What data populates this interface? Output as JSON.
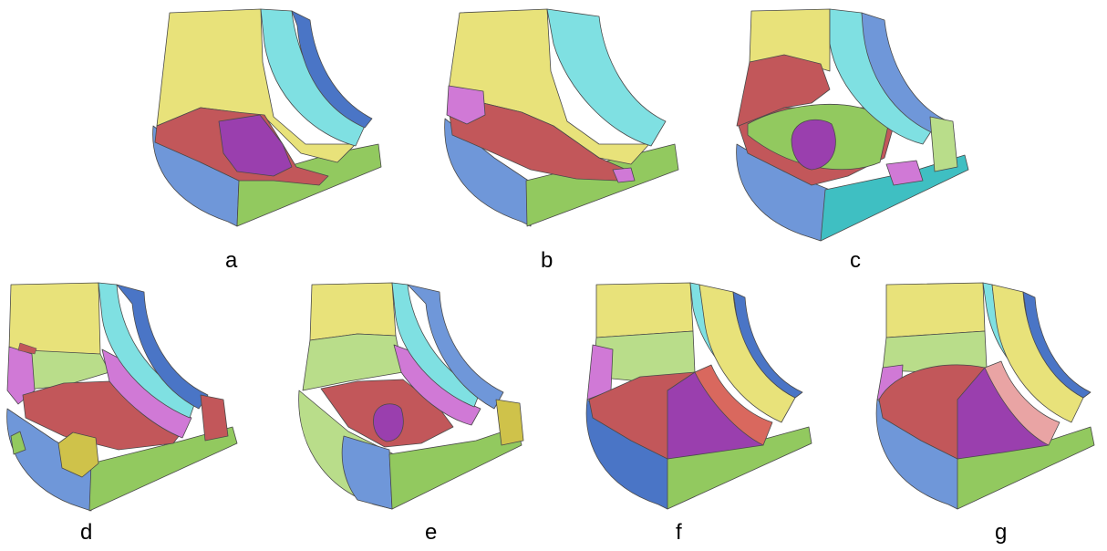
{
  "palette": {
    "yellow": "#e8e27a",
    "cyan": "#7fe0e2",
    "blue": "#6f97d9",
    "blue_dark": "#4a75c6",
    "red": "#c2575a",
    "purple": "#9a3fae",
    "magenta": "#d079d6",
    "green": "#92c95f",
    "green_light": "#b9dd8a",
    "teal": "#3fbfc2",
    "pink": "#e9a4a4",
    "salmon": "#d9685e",
    "olive": "#cfc24a"
  },
  "panels": [
    {
      "id": "a",
      "label": "a"
    },
    {
      "id": "b",
      "label": "b"
    },
    {
      "id": "c",
      "label": "c"
    },
    {
      "id": "d",
      "label": "d"
    },
    {
      "id": "e",
      "label": "e"
    },
    {
      "id": "f",
      "label": "f"
    },
    {
      "id": "g",
      "label": "g"
    }
  ]
}
